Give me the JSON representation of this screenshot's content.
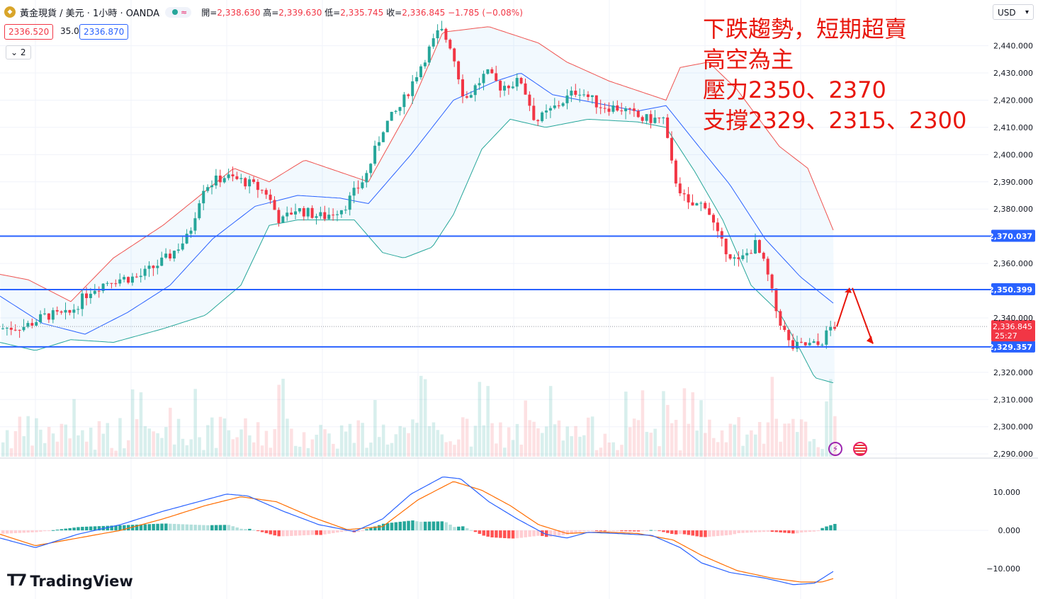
{
  "header": {
    "symbol": "黃金現貨 / 美元 · 1小時 · OANDA",
    "logo_icon": "gold-logo-icon",
    "open_label": "開=",
    "open": "2,338.630",
    "high_label": "高=",
    "high": "2,339.630",
    "low_label": "低=",
    "low": "2,335.745",
    "close_label": "收=",
    "close": "2,336.845",
    "change": "−1.785 (−0.08%)",
    "bid": "2336.520",
    "spread": "35.0",
    "ask": "2336.870",
    "indicators_collapsed": "2"
  },
  "currency_selector": "USD",
  "annotation": {
    "line1": "下跌趨勢，短期超賣",
    "line2": "高空為主",
    "line3": "壓力2350、2370",
    "line4": "支撐2329、2315、2300",
    "color": "#e8160c"
  },
  "branding": "TradingView",
  "colors": {
    "up": "#26a69a",
    "down": "#f23645",
    "band_upper": "#ef5350",
    "band_lower": "#26a69a",
    "band_mid": "#2962ff",
    "hline": "#2962ff",
    "macd": "#2962ff",
    "signal": "#ff6d00"
  },
  "chart_data": [
    {
      "type": "candlestick",
      "title": "黃金現貨 / 美元 · 1小時 · OANDA",
      "ylim": [
        2289,
        2449
      ],
      "y_ticks": [
        "2,440.000",
        "2,430.000",
        "2,420.000",
        "2,410.000",
        "2,400.000",
        "2,390.000",
        "2,380.000",
        "2,360.000",
        "2,340.000",
        "2,320.000",
        "2,310.000",
        "2,300.000",
        "2,290.000"
      ],
      "horizontal_lines": [
        {
          "label": "2,370.037",
          "value": 2370.037
        },
        {
          "label": "2,350.399",
          "value": 2350.399
        },
        {
          "label": "2,329.357",
          "value": 2329.357
        }
      ],
      "last_price": {
        "label": "2,336.845",
        "value": 2336.845,
        "countdown": "25:27"
      },
      "bollinger_upper_keypoints": [
        [
          0,
          2356
        ],
        [
          40,
          2354
        ],
        [
          100,
          2346
        ],
        [
          160,
          2362
        ],
        [
          230,
          2374
        ],
        [
          330,
          2395
        ],
        [
          380,
          2390
        ],
        [
          430,
          2398
        ],
        [
          520,
          2390
        ],
        [
          580,
          2418
        ],
        [
          625,
          2445
        ],
        [
          690,
          2447
        ],
        [
          760,
          2441
        ],
        [
          800,
          2434
        ],
        [
          860,
          2427
        ],
        [
          940,
          2420
        ],
        [
          960,
          2432
        ],
        [
          1000,
          2434
        ],
        [
          1040,
          2424
        ],
        [
          1100,
          2403
        ],
        [
          1140,
          2395
        ],
        [
          1178,
          2371
        ]
      ],
      "bollinger_mid_keypoints": [
        [
          0,
          2348
        ],
        [
          60,
          2338
        ],
        [
          120,
          2334
        ],
        [
          180,
          2342
        ],
        [
          240,
          2352
        ],
        [
          300,
          2369
        ],
        [
          360,
          2381
        ],
        [
          420,
          2385
        ],
        [
          480,
          2384
        ],
        [
          520,
          2382
        ],
        [
          580,
          2400
        ],
        [
          640,
          2420
        ],
        [
          700,
          2427
        ],
        [
          735,
          2430
        ],
        [
          780,
          2422
        ],
        [
          840,
          2419
        ],
        [
          900,
          2416
        ],
        [
          940,
          2418
        ],
        [
          980,
          2405
        ],
        [
          1030,
          2389
        ],
        [
          1080,
          2369
        ],
        [
          1130,
          2355
        ],
        [
          1178,
          2345
        ]
      ],
      "bollinger_lower_keypoints": [
        [
          0,
          2331
        ],
        [
          50,
          2328
        ],
        [
          100,
          2332
        ],
        [
          160,
          2331
        ],
        [
          230,
          2336
        ],
        [
          290,
          2341
        ],
        [
          340,
          2352
        ],
        [
          380,
          2374
        ],
        [
          420,
          2376
        ],
        [
          500,
          2376
        ],
        [
          540,
          2364
        ],
        [
          570,
          2362
        ],
        [
          610,
          2366
        ],
        [
          640,
          2378
        ],
        [
          680,
          2402
        ],
        [
          720,
          2413
        ],
        [
          770,
          2410
        ],
        [
          830,
          2413
        ],
        [
          900,
          2412
        ],
        [
          940,
          2410
        ],
        [
          980,
          2394
        ],
        [
          1020,
          2376
        ],
        [
          1060,
          2352
        ],
        [
          1100,
          2342
        ],
        [
          1130,
          2328
        ],
        [
          1150,
          2318
        ],
        [
          1178,
          2316
        ]
      ],
      "price_keypoints": [
        [
          0,
          2336
        ],
        [
          40,
          2337
        ],
        [
          70,
          2341
        ],
        [
          100,
          2341
        ],
        [
          130,
          2350
        ],
        [
          160,
          2354
        ],
        [
          200,
          2355
        ],
        [
          240,
          2362
        ],
        [
          270,
          2370
        ],
        [
          290,
          2388
        ],
        [
          320,
          2392
        ],
        [
          350,
          2390
        ],
        [
          380,
          2386
        ],
        [
          400,
          2375
        ],
        [
          420,
          2380
        ],
        [
          460,
          2377
        ],
        [
          490,
          2381
        ],
        [
          520,
          2392
        ],
        [
          545,
          2410
        ],
        [
          570,
          2418
        ],
        [
          600,
          2434
        ],
        [
          625,
          2446
        ],
        [
          640,
          2440
        ],
        [
          660,
          2420
        ],
        [
          690,
          2430
        ],
        [
          710,
          2425
        ],
        [
          740,
          2427
        ],
        [
          760,
          2412
        ],
        [
          790,
          2418
        ],
        [
          820,
          2424
        ],
        [
          850,
          2418
        ],
        [
          880,
          2417
        ],
        [
          910,
          2413
        ],
        [
          940,
          2413
        ],
        [
          955,
          2392
        ],
        [
          975,
          2381
        ],
        [
          1000,
          2382
        ],
        [
          1020,
          2368
        ],
        [
          1045,
          2360
        ],
        [
          1070,
          2367
        ],
        [
          1085,
          2358
        ],
        [
          1100,
          2342
        ],
        [
          1120,
          2329
        ],
        [
          1140,
          2330
        ],
        [
          1160,
          2330
        ],
        [
          1178,
          2337
        ]
      ]
    },
    {
      "type": "bar",
      "title": "Volume",
      "note": "volume histogram shown without scale labels"
    },
    {
      "type": "line",
      "title": "MACD",
      "ylim": [
        -13.5,
        16.5
      ],
      "y_ticks": [
        "10.000",
        "0.000",
        "−10.000"
      ],
      "macd_keypoints": [
        [
          0,
          -2
        ],
        [
          50,
          -4.5
        ],
        [
          110,
          -1
        ],
        [
          170,
          1.5
        ],
        [
          230,
          5
        ],
        [
          290,
          8
        ],
        [
          320,
          9.5
        ],
        [
          350,
          9
        ],
        [
          400,
          5
        ],
        [
          450,
          1.5
        ],
        [
          500,
          -0.3
        ],
        [
          540,
          3
        ],
        [
          580,
          9.5
        ],
        [
          625,
          14
        ],
        [
          650,
          13.5
        ],
        [
          690,
          7.5
        ],
        [
          730,
          3
        ],
        [
          770,
          -1
        ],
        [
          800,
          -2
        ],
        [
          830,
          -0.5
        ],
        [
          870,
          -0.8
        ],
        [
          920,
          -1.3
        ],
        [
          960,
          -4.5
        ],
        [
          990,
          -8.5
        ],
        [
          1030,
          -11
        ],
        [
          1080,
          -12.5
        ],
        [
          1120,
          -14.2
        ],
        [
          1150,
          -13.8
        ],
        [
          1178,
          -10.5
        ]
      ],
      "signal_keypoints": [
        [
          0,
          -1
        ],
        [
          50,
          -4
        ],
        [
          110,
          -2
        ],
        [
          170,
          0
        ],
        [
          230,
          3
        ],
        [
          290,
          6.5
        ],
        [
          340,
          8.8
        ],
        [
          390,
          7.5
        ],
        [
          440,
          3.5
        ],
        [
          490,
          0.2
        ],
        [
          540,
          1
        ],
        [
          590,
          8
        ],
        [
          640,
          12.8
        ],
        [
          680,
          10.5
        ],
        [
          720,
          6.5
        ],
        [
          760,
          1.5
        ],
        [
          800,
          -0.8
        ],
        [
          850,
          -0.4
        ],
        [
          900,
          -0.8
        ],
        [
          950,
          -2.5
        ],
        [
          990,
          -6.5
        ],
        [
          1040,
          -10.5
        ],
        [
          1090,
          -12.5
        ],
        [
          1130,
          -13.5
        ],
        [
          1160,
          -13.5
        ],
        [
          1178,
          -12.5
        ]
      ]
    }
  ]
}
